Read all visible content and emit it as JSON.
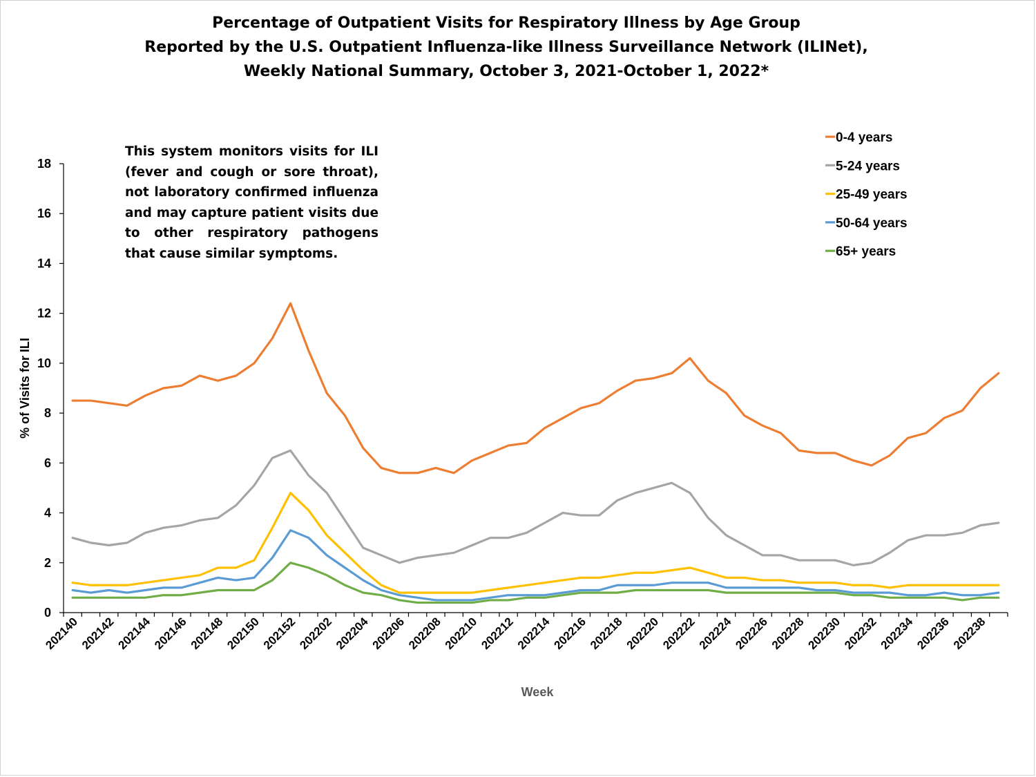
{
  "chart_data": {
    "type": "line",
    "title": [
      "Percentage of Outpatient Visits for Respiratory Illness by Age Group",
      "Reported by the U.S. Outpatient Influenza-like Illness Surveillance Network (ILINet),",
      "Weekly National Summary, October 3, 2021-October 1, 2022*"
    ],
    "note": "This system monitors visits for ILI (fever and cough or sore throat), not laboratory confirmed influenza and may capture patient visits due to other respiratory pathogens that cause similar symptoms.",
    "xlabel": "Week",
    "ylabel": "% of Visits for ILI",
    "ylim": [
      0,
      18
    ],
    "yticks": [
      0,
      2,
      4,
      6,
      8,
      10,
      12,
      14,
      16,
      18
    ],
    "grid": false,
    "legend_position": "top-right",
    "x": [
      "202140",
      "202141",
      "202142",
      "202143",
      "202144",
      "202145",
      "202146",
      "202147",
      "202148",
      "202149",
      "202150",
      "202151",
      "202152",
      "202201",
      "202202",
      "202203",
      "202204",
      "202205",
      "202206",
      "202207",
      "202208",
      "202209",
      "202210",
      "202211",
      "202212",
      "202213",
      "202214",
      "202215",
      "202216",
      "202217",
      "202218",
      "202219",
      "202220",
      "202221",
      "202222",
      "202223",
      "202224",
      "202225",
      "202226",
      "202227",
      "202228",
      "202229",
      "202230",
      "202231",
      "202232",
      "202233",
      "202234",
      "202235",
      "202236",
      "202237",
      "202238",
      "202239"
    ],
    "xtick_labels": [
      "202140",
      "202142",
      "202144",
      "202146",
      "202148",
      "202150",
      "202152",
      "202202",
      "202204",
      "202206",
      "202208",
      "202210",
      "202212",
      "202214",
      "202216",
      "202218",
      "202220",
      "202222",
      "202224",
      "202226",
      "202228",
      "202230",
      "202232",
      "202234",
      "202236",
      "202238"
    ],
    "series": [
      {
        "name": "0-4 years",
        "color": "#ED7D31",
        "values": [
          8.5,
          8.5,
          8.4,
          8.3,
          8.7,
          9.0,
          9.1,
          9.5,
          9.3,
          9.5,
          10.0,
          11.0,
          12.4,
          10.5,
          8.8,
          7.9,
          6.6,
          5.8,
          5.6,
          5.6,
          5.8,
          5.6,
          6.1,
          6.4,
          6.7,
          6.8,
          7.4,
          7.8,
          8.2,
          8.4,
          8.9,
          9.3,
          9.4,
          9.6,
          10.2,
          9.3,
          8.8,
          7.9,
          7.5,
          7.2,
          6.5,
          6.4,
          6.4,
          6.1,
          5.9,
          6.3,
          7.0,
          7.2,
          7.8,
          8.1,
          9.0,
          9.6
        ]
      },
      {
        "name": "5-24 years",
        "color": "#A5A5A5",
        "values": [
          3.0,
          2.8,
          2.7,
          2.8,
          3.2,
          3.4,
          3.5,
          3.7,
          3.8,
          4.3,
          5.1,
          6.2,
          6.5,
          5.5,
          4.8,
          3.7,
          2.6,
          2.3,
          2.0,
          2.2,
          2.3,
          2.4,
          2.7,
          3.0,
          3.0,
          3.2,
          3.6,
          4.0,
          3.9,
          3.9,
          4.5,
          4.8,
          5.0,
          5.2,
          4.8,
          3.8,
          3.1,
          2.7,
          2.3,
          2.3,
          2.1,
          2.1,
          2.1,
          1.9,
          2.0,
          2.4,
          2.9,
          3.1,
          3.1,
          3.2,
          3.5,
          3.6
        ]
      },
      {
        "name": "25-49 years",
        "color": "#FFC000",
        "values": [
          1.2,
          1.1,
          1.1,
          1.1,
          1.2,
          1.3,
          1.4,
          1.5,
          1.8,
          1.8,
          2.1,
          3.4,
          4.8,
          4.1,
          3.1,
          2.4,
          1.7,
          1.1,
          0.8,
          0.8,
          0.8,
          0.8,
          0.8,
          0.9,
          1.0,
          1.1,
          1.2,
          1.3,
          1.4,
          1.4,
          1.5,
          1.6,
          1.6,
          1.7,
          1.8,
          1.6,
          1.4,
          1.4,
          1.3,
          1.3,
          1.2,
          1.2,
          1.2,
          1.1,
          1.1,
          1.0,
          1.1,
          1.1,
          1.1,
          1.1,
          1.1,
          1.1
        ]
      },
      {
        "name": "50-64 years",
        "color": "#5B9BD5",
        "values": [
          0.9,
          0.8,
          0.9,
          0.8,
          0.9,
          1.0,
          1.0,
          1.2,
          1.4,
          1.3,
          1.4,
          2.2,
          3.3,
          3.0,
          2.3,
          1.8,
          1.3,
          0.9,
          0.7,
          0.6,
          0.5,
          0.5,
          0.5,
          0.6,
          0.7,
          0.7,
          0.7,
          0.8,
          0.9,
          0.9,
          1.1,
          1.1,
          1.1,
          1.2,
          1.2,
          1.2,
          1.0,
          1.0,
          1.0,
          1.0,
          1.0,
          0.9,
          0.9,
          0.8,
          0.8,
          0.8,
          0.7,
          0.7,
          0.8,
          0.7,
          0.7,
          0.8
        ]
      },
      {
        "name": "65+ years",
        "color": "#70AD47",
        "values": [
          0.6,
          0.6,
          0.6,
          0.6,
          0.6,
          0.7,
          0.7,
          0.8,
          0.9,
          0.9,
          0.9,
          1.3,
          2.0,
          1.8,
          1.5,
          1.1,
          0.8,
          0.7,
          0.5,
          0.4,
          0.4,
          0.4,
          0.4,
          0.5,
          0.5,
          0.6,
          0.6,
          0.7,
          0.8,
          0.8,
          0.8,
          0.9,
          0.9,
          0.9,
          0.9,
          0.9,
          0.8,
          0.8,
          0.8,
          0.8,
          0.8,
          0.8,
          0.8,
          0.7,
          0.7,
          0.6,
          0.6,
          0.6,
          0.6,
          0.5,
          0.6,
          0.6
        ]
      }
    ]
  }
}
